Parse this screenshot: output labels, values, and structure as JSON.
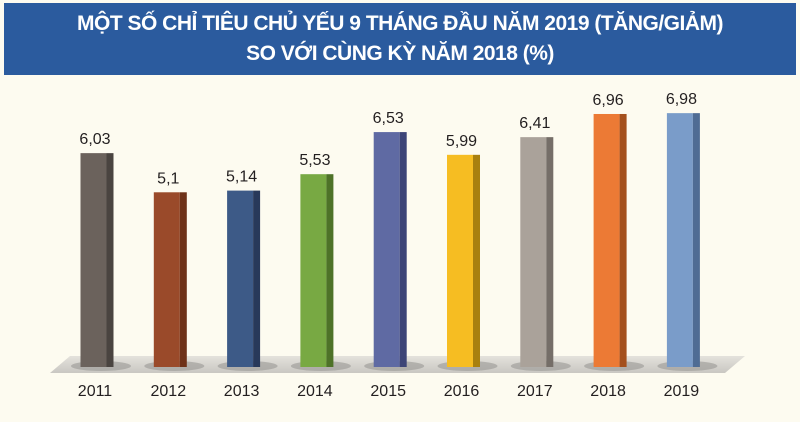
{
  "title_line1": "MỘT SỐ CHỈ TIÊU CHỦ YẾU 9 THÁNG ĐẦU NĂM 2019 (TĂNG/GIẢM)",
  "title_line2": "SO VỚI CÙNG KỲ NĂM 2018 (%)",
  "chart_data": {
    "type": "bar",
    "title": "MỘT SỐ CHỈ TIÊU CHỦ YẾU 9 THÁNG ĐẦU NĂM 2019 (TĂNG/GIẢM) SO VỚI CÙNG KỲ NĂM 2018 (%)",
    "categories": [
      "2011",
      "2012",
      "2013",
      "2014",
      "2015",
      "2016",
      "2017",
      "2018",
      "2019"
    ],
    "values": [
      6.03,
      5.1,
      5.14,
      5.53,
      6.53,
      5.99,
      6.41,
      6.96,
      6.98
    ],
    "data_labels": [
      "6,03",
      "5,1",
      "5,14",
      "5,53",
      "6,53",
      "5,99",
      "6,41",
      "6,96",
      "6,98"
    ],
    "colors": [
      "#6b625c",
      "#9a4a2a",
      "#3d5a87",
      "#78a943",
      "#5f6aa3",
      "#f6bd22",
      "#aaa29a",
      "#ec7a35",
      "#7a9cc9"
    ],
    "side_colors": [
      "#4a4440",
      "#6e3219",
      "#28395a",
      "#4e7228",
      "#3d4577",
      "#a8800f",
      "#756e68",
      "#a4501d",
      "#4f6c94"
    ],
    "xlabel": "",
    "ylabel": "",
    "grid": false
  }
}
